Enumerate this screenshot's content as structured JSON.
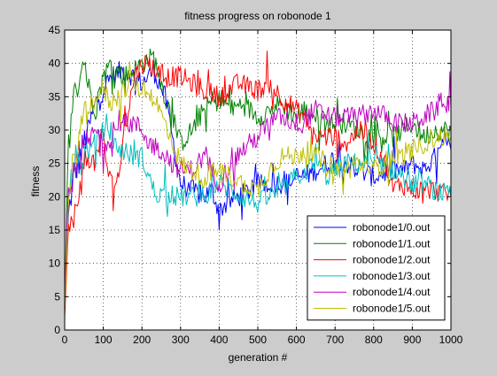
{
  "chart_data": {
    "type": "line",
    "title": "fitness progress on robonode 1",
    "xlabel": "generation #",
    "ylabel": "fitness",
    "xlim": [
      0,
      1000
    ],
    "ylim": [
      0,
      45
    ],
    "xticks": [
      "0",
      "100",
      "200",
      "300",
      "400",
      "500",
      "600",
      "700",
      "800",
      "900",
      "1000"
    ],
    "yticks": [
      "0",
      "5",
      "10",
      "15",
      "20",
      "25",
      "30",
      "35",
      "40",
      "45"
    ],
    "grid": true,
    "legend_position": "bottom-right",
    "series": [
      {
        "name": "robonode1/0.out",
        "color": "#0000ff",
        "x": [
          0,
          10,
          20,
          40,
          60,
          80,
          100,
          120,
          150,
          180,
          200,
          230,
          260,
          300,
          330,
          360,
          380,
          400,
          420,
          450,
          480,
          500,
          530,
          560,
          580,
          600,
          620,
          650,
          680,
          700,
          730,
          760,
          800,
          850,
          880,
          900,
          930,
          960,
          990,
          1000
        ],
        "y": [
          3,
          17,
          22,
          26,
          30,
          34,
          36,
          38,
          39,
          38,
          37,
          39,
          35,
          22,
          21,
          20,
          21,
          18,
          19,
          20,
          21,
          22,
          22,
          22,
          22,
          23,
          23,
          24,
          25,
          26,
          25,
          24,
          23,
          24,
          24,
          25,
          24,
          26,
          28,
          27
        ]
      },
      {
        "name": "robonode1/1.out",
        "color": "#008000",
        "x": [
          0,
          10,
          20,
          30,
          40,
          50,
          60,
          80,
          100,
          120,
          150,
          180,
          200,
          230,
          260,
          300,
          330,
          360,
          400,
          430,
          460,
          500,
          530,
          560,
          600,
          620,
          650,
          680,
          700,
          730,
          760,
          800,
          850,
          900,
          930,
          960,
          1000
        ],
        "y": [
          4,
          28,
          34,
          36,
          38,
          41,
          37,
          33,
          38,
          40,
          38,
          39,
          40,
          41,
          35,
          28,
          30,
          33,
          35,
          33,
          34,
          32,
          33,
          34,
          32,
          33,
          32,
          31,
          31,
          31,
          30,
          29,
          29,
          31,
          29,
          30,
          30
        ]
      },
      {
        "name": "robonode1/2.out",
        "color": "#ff0000",
        "x": [
          0,
          10,
          20,
          30,
          40,
          50,
          60,
          80,
          100,
          110,
          120,
          140,
          150,
          180,
          200,
          220,
          250,
          280,
          300,
          330,
          360,
          400,
          450,
          500,
          530,
          560,
          600,
          620,
          650,
          680,
          700,
          730,
          760,
          800,
          830,
          850,
          870,
          900,
          930,
          960,
          1000
        ],
        "y": [
          2,
          15,
          15,
          19,
          22,
          24,
          26,
          25,
          30,
          24,
          22,
          23,
          28,
          38,
          40,
          40,
          38,
          38,
          38,
          37,
          36,
          35,
          37,
          36,
          37,
          35,
          33,
          32,
          29,
          29,
          29,
          28,
          30,
          28,
          25,
          21,
          22,
          21,
          21,
          21,
          20
        ]
      },
      {
        "name": "robonode1/3.out",
        "color": "#00bfbf",
        "x": [
          0,
          10,
          20,
          40,
          60,
          80,
          100,
          120,
          150,
          180,
          200,
          230,
          260,
          300,
          330,
          360,
          400,
          430,
          460,
          500,
          530,
          560,
          600,
          630,
          650,
          680,
          700,
          730,
          760,
          800,
          850,
          880,
          900,
          930,
          960,
          1000
        ],
        "y": [
          4,
          20,
          26,
          25,
          27,
          28,
          30,
          28,
          27,
          26,
          26,
          21,
          20,
          20,
          20,
          20,
          22,
          21,
          20,
          19,
          20,
          21,
          23,
          24,
          25,
          23,
          24,
          25,
          25,
          25,
          24,
          23,
          22,
          22,
          21,
          20
        ]
      },
      {
        "name": "robonode1/4.out",
        "color": "#bf00bf",
        "x": [
          0,
          10,
          20,
          40,
          60,
          80,
          100,
          120,
          150,
          180,
          200,
          220,
          250,
          280,
          300,
          330,
          360,
          400,
          430,
          460,
          500,
          530,
          560,
          600,
          630,
          650,
          680,
          700,
          730,
          760,
          800,
          830,
          860,
          900,
          930,
          960,
          980,
          1000
        ],
        "y": [
          5,
          20,
          22,
          26,
          28,
          30,
          28,
          29,
          31,
          31,
          30,
          28,
          27,
          25,
          24,
          24,
          26,
          22,
          25,
          27,
          29,
          31,
          32,
          31,
          32,
          33,
          32,
          32,
          32,
          32,
          33,
          32,
          31,
          31,
          32,
          33,
          35,
          33
        ]
      },
      {
        "name": "robonode1/5.out",
        "color": "#bfbf00",
        "x": [
          0,
          10,
          20,
          40,
          60,
          80,
          100,
          120,
          150,
          180,
          200,
          230,
          260,
          300,
          330,
          360,
          400,
          430,
          460,
          500,
          530,
          560,
          600,
          620,
          650,
          680,
          700,
          730,
          760,
          800,
          850,
          880,
          900,
          930,
          960,
          1000
        ],
        "y": [
          3,
          18,
          24,
          30,
          33,
          35,
          36,
          34,
          36,
          37,
          36,
          35,
          31,
          25,
          24,
          23,
          24,
          23,
          22,
          21,
          24,
          26,
          26,
          27,
          26,
          25,
          24,
          24,
          25,
          24,
          26,
          26,
          27,
          28,
          29,
          29
        ]
      }
    ]
  }
}
